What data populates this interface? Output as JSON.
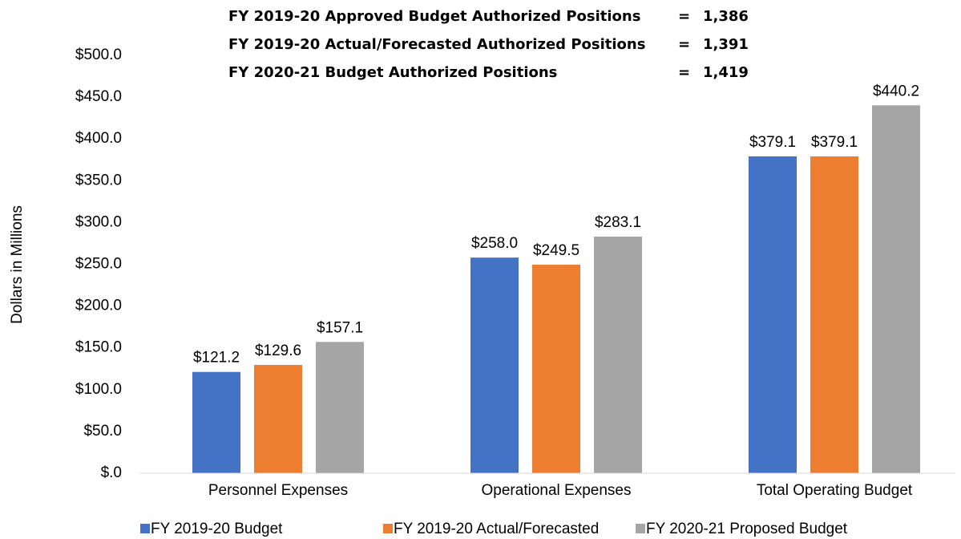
{
  "chart_data": {
    "type": "bar",
    "annotations": [
      {
        "text": "FY 2019-20 Approved Budget Authorized Positions",
        "sign": "=",
        "value": 1386,
        "label": "1,386"
      },
      {
        "text": "FY 2019-20 Actual/Forecasted Authorized Positions",
        "sign": "=",
        "value": 1391,
        "label": "1,391"
      },
      {
        "text": "FY 2020-21 Budget Authorized Positions",
        "sign": "=",
        "value": 1419,
        "label": "1,419"
      }
    ],
    "y_label": "Dollars in Millions",
    "categories": [
      "Personnel Expenses",
      "Operational Expenses",
      "Total Operating Budget"
    ],
    "series": [
      {
        "name": "FY 2019-20 Budget",
        "color": "#4472c4",
        "values": [
          121.2,
          258.0,
          379.1
        ],
        "value_labels": [
          "$121.2",
          "$258.0",
          "$379.1"
        ]
      },
      {
        "name": "FY 2019-20 Actual/Forecasted",
        "color": "#ed7d31",
        "values": [
          129.6,
          249.5,
          379.1
        ],
        "value_labels": [
          "$129.6",
          "$249.5",
          "$379.1"
        ]
      },
      {
        "name": "FY 2020-21 Proposed Budget",
        "color": "#a5a5a5",
        "values": [
          157.1,
          283.1,
          440.2
        ],
        "value_labels": [
          "$157.1",
          "$283.1",
          "$440.2"
        ]
      }
    ],
    "ylim": [
      0,
      500
    ],
    "yticks": [
      {
        "value": 0,
        "label": "$.0"
      },
      {
        "value": 50,
        "label": "$50.0"
      },
      {
        "value": 100,
        "label": "$100.0"
      },
      {
        "value": 150,
        "label": "$150.0"
      },
      {
        "value": 200,
        "label": "$200.0"
      },
      {
        "value": 250,
        "label": "$250.0"
      },
      {
        "value": 300,
        "label": "$300.0"
      },
      {
        "value": 350,
        "label": "$350.0"
      },
      {
        "value": 400,
        "label": "$400.0"
      },
      {
        "value": 450,
        "label": "$450.0"
      },
      {
        "value": 500,
        "label": "$500.0"
      }
    ],
    "grid": false,
    "legend": "bottom"
  }
}
